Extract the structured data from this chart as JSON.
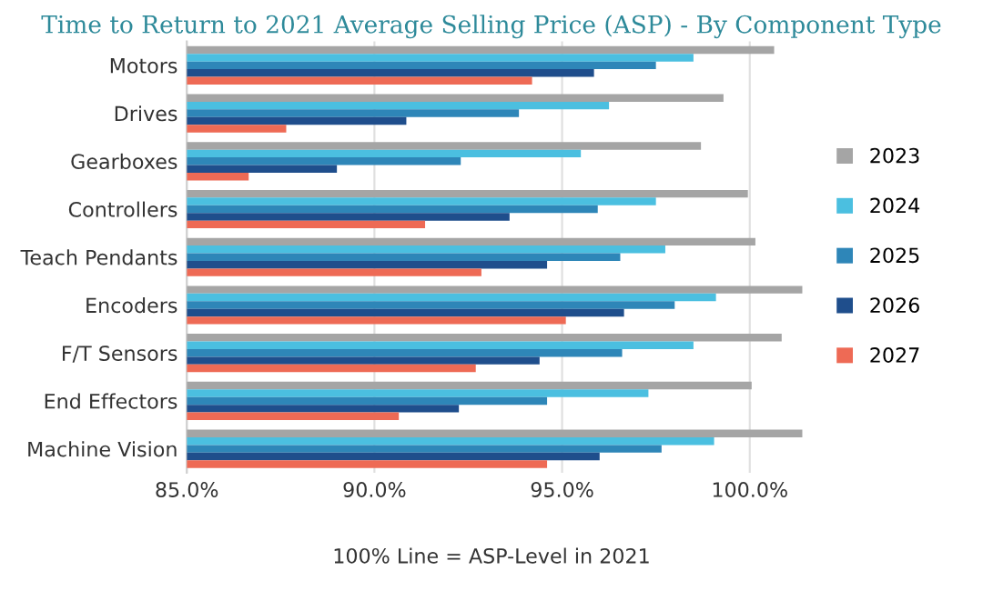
{
  "chart_data": {
    "type": "bar",
    "orientation": "horizontal",
    "title": "Time to Return to 2021 Average Selling Price (ASP) - By Component Type",
    "categories": [
      "Motors",
      "Drives",
      "Gearboxes",
      "Controllers",
      "Teach Pendants",
      "Encoders",
      "F/T Sensors",
      "End Effectors",
      "Machine Vision"
    ],
    "series": [
      {
        "name": "2023",
        "color": "#a5a5a5",
        "values": [
          100.65,
          99.3,
          98.7,
          99.95,
          100.15,
          101.4,
          100.85,
          100.05,
          101.4
        ]
      },
      {
        "name": "2024",
        "color": "#4bbfe0",
        "values": [
          98.5,
          96.25,
          95.5,
          97.5,
          97.75,
          99.1,
          98.5,
          97.3,
          99.05
        ]
      },
      {
        "name": "2025",
        "color": "#2e86b8",
        "values": [
          97.5,
          93.85,
          92.3,
          95.95,
          96.55,
          98.0,
          96.6,
          94.6,
          97.65
        ]
      },
      {
        "name": "2026",
        "color": "#1f4e8c",
        "values": [
          95.85,
          90.85,
          89.0,
          93.6,
          94.6,
          96.65,
          94.4,
          92.25,
          96.0
        ]
      },
      {
        "name": "2027",
        "color": "#ee6a55",
        "values": [
          94.2,
          87.65,
          86.65,
          91.35,
          92.85,
          95.1,
          92.7,
          90.65,
          94.6
        ]
      }
    ],
    "xlim": [
      85,
      101.5
    ],
    "xticks": [
      {
        "value": 85,
        "label": "85.0%"
      },
      {
        "value": 90,
        "label": "90.0%"
      },
      {
        "value": 95,
        "label": "95.0%"
      },
      {
        "value": 100,
        "label": "100.0%"
      }
    ],
    "grid": "x",
    "legend": "right",
    "annotations": [
      "100% Line = ASP-Level in 2021"
    ]
  }
}
